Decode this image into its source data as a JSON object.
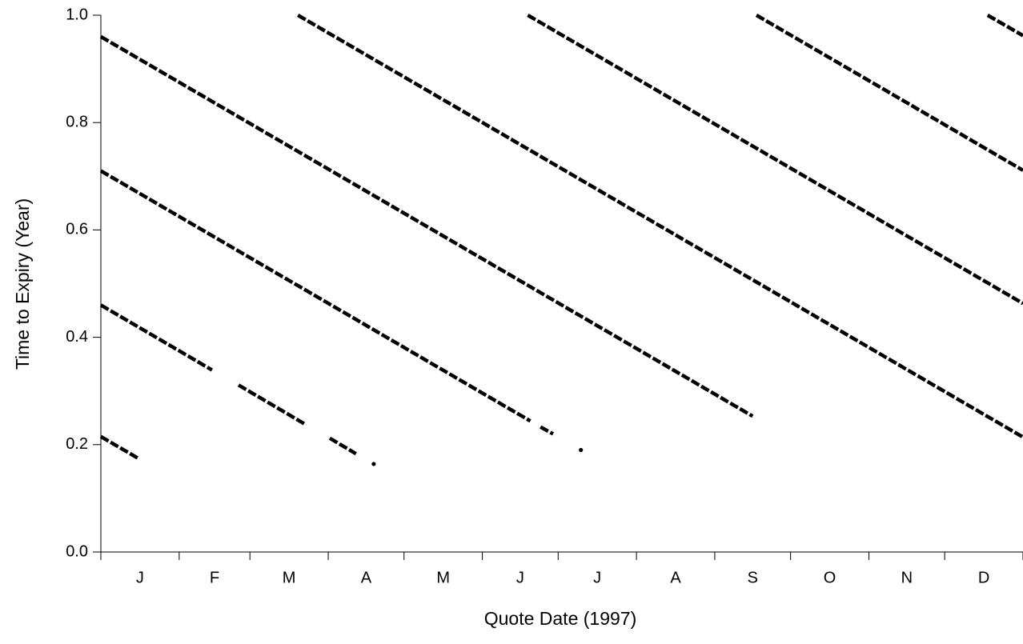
{
  "chart_data": {
    "type": "line",
    "line_style": "dotted",
    "color": "#000000",
    "xlabel": "Quote Date (1997)",
    "ylabel": "Time to Expiry (Year)",
    "categories": [
      "J",
      "F",
      "M",
      "A",
      "M",
      "J",
      "J",
      "A",
      "S",
      "O",
      "N",
      "D"
    ],
    "xlim": [
      0,
      365
    ],
    "xticks": [
      0,
      31,
      59,
      90,
      120,
      151,
      181,
      212,
      243,
      273,
      304,
      334,
      365
    ],
    "ylim": [
      0,
      1
    ],
    "yticks": [
      {
        "value": 0,
        "label": "0.0"
      },
      0.2,
      0.4,
      0.6,
      0.8,
      {
        "value": 1,
        "label": "1.0"
      }
    ],
    "grid": false,
    "series": [
      {
        "x": [
          0,
          14.6
        ],
        "values": [
          0.215,
          0.175
        ]
      },
      {
        "x": [
          0,
          44,
          null,
          54.5,
          80.5,
          null,
          90.6,
          101,
          null,
          108
        ],
        "values": [
          0.46,
          0.339,
          null,
          0.311,
          0.239,
          null,
          0.212,
          0.183,
          null,
          0.164
        ]
      },
      {
        "x": [
          0,
          170,
          null,
          174,
          179,
          null,
          190
        ],
        "values": [
          0.71,
          0.244,
          null,
          0.233,
          0.22,
          null,
          0.19
        ]
      },
      {
        "x": [
          0,
          258
        ],
        "values": [
          0.96,
          0.253
        ]
      },
      {
        "x": [
          78,
          365
        ],
        "values": [
          1.0,
          0.214
        ]
      },
      {
        "x": [
          169,
          365
        ],
        "values": [
          1.0,
          0.463
        ]
      },
      {
        "x": [
          259.5,
          365
        ],
        "values": [
          1.0,
          0.711
        ]
      },
      {
        "x": [
          351,
          365
        ],
        "values": [
          1.0,
          0.962
        ]
      }
    ]
  }
}
